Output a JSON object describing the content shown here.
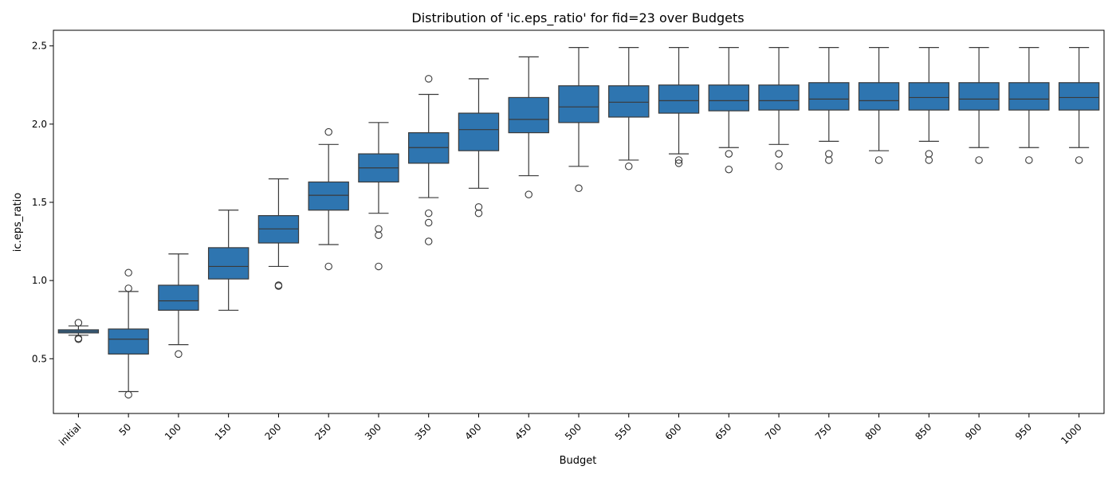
{
  "chart_data": {
    "type": "boxplot",
    "title": "Distribution of 'ic.eps_ratio' for fid=23 over Budgets",
    "xlabel": "Budget",
    "ylabel": "ic.eps_ratio",
    "ylim": [
      0.15,
      2.6
    ],
    "yticks": [
      "0.5",
      "1.0",
      "1.5",
      "2.0",
      "2.5"
    ],
    "grid": false,
    "box_color": "#2e75b0",
    "categories": [
      "initial",
      "50",
      "100",
      "150",
      "200",
      "250",
      "300",
      "350",
      "400",
      "450",
      "500",
      "550",
      "600",
      "650",
      "700",
      "750",
      "800",
      "850",
      "900",
      "950",
      "1000"
    ],
    "boxes": [
      {
        "whislo": 0.65,
        "q1": 0.665,
        "med": 0.675,
        "q3": 0.685,
        "whishi": 0.71,
        "fliers": [
          0.73,
          0.63,
          0.625
        ]
      },
      {
        "whislo": 0.29,
        "q1": 0.53,
        "med": 0.625,
        "q3": 0.69,
        "whishi": 0.93,
        "fliers": [
          1.05,
          0.95,
          0.27
        ]
      },
      {
        "whislo": 0.59,
        "q1": 0.81,
        "med": 0.87,
        "q3": 0.97,
        "whishi": 1.17,
        "fliers": [
          0.53
        ]
      },
      {
        "whislo": 0.81,
        "q1": 1.01,
        "med": 1.09,
        "q3": 1.21,
        "whishi": 1.45,
        "fliers": []
      },
      {
        "whislo": 1.09,
        "q1": 1.24,
        "med": 1.33,
        "q3": 1.415,
        "whishi": 1.65,
        "fliers": [
          0.97,
          0.965
        ]
      },
      {
        "whislo": 1.23,
        "q1": 1.45,
        "med": 1.545,
        "q3": 1.63,
        "whishi": 1.87,
        "fliers": [
          1.95,
          1.09
        ]
      },
      {
        "whislo": 1.43,
        "q1": 1.63,
        "med": 1.72,
        "q3": 1.81,
        "whishi": 2.01,
        "fliers": [
          1.33,
          1.29,
          1.09
        ]
      },
      {
        "whislo": 1.53,
        "q1": 1.75,
        "med": 1.85,
        "q3": 1.945,
        "whishi": 2.19,
        "fliers": [
          2.29,
          1.43,
          1.37,
          1.25
        ]
      },
      {
        "whislo": 1.59,
        "q1": 1.83,
        "med": 1.965,
        "q3": 2.07,
        "whishi": 2.29,
        "fliers": [
          1.47,
          1.43
        ]
      },
      {
        "whislo": 1.67,
        "q1": 1.945,
        "med": 2.03,
        "q3": 2.17,
        "whishi": 2.43,
        "fliers": [
          1.55
        ]
      },
      {
        "whislo": 1.73,
        "q1": 2.01,
        "med": 2.11,
        "q3": 2.245,
        "whishi": 2.49,
        "fliers": [
          1.59
        ]
      },
      {
        "whislo": 1.77,
        "q1": 2.045,
        "med": 2.14,
        "q3": 2.245,
        "whishi": 2.49,
        "fliers": [
          1.73
        ]
      },
      {
        "whislo": 1.81,
        "q1": 2.07,
        "med": 2.15,
        "q3": 2.25,
        "whishi": 2.49,
        "fliers": [
          1.77,
          1.75
        ]
      },
      {
        "whislo": 1.85,
        "q1": 2.085,
        "med": 2.15,
        "q3": 2.25,
        "whishi": 2.49,
        "fliers": [
          1.81,
          1.71
        ]
      },
      {
        "whislo": 1.87,
        "q1": 2.09,
        "med": 2.15,
        "q3": 2.25,
        "whishi": 2.49,
        "fliers": [
          1.81,
          1.73
        ]
      },
      {
        "whislo": 1.89,
        "q1": 2.09,
        "med": 2.16,
        "q3": 2.265,
        "whishi": 2.49,
        "fliers": [
          1.81,
          1.77
        ]
      },
      {
        "whislo": 1.83,
        "q1": 2.09,
        "med": 2.15,
        "q3": 2.265,
        "whishi": 2.49,
        "fliers": [
          1.77
        ]
      },
      {
        "whislo": 1.89,
        "q1": 2.09,
        "med": 2.17,
        "q3": 2.265,
        "whishi": 2.49,
        "fliers": [
          1.81,
          1.77
        ]
      },
      {
        "whislo": 1.85,
        "q1": 2.09,
        "med": 2.16,
        "q3": 2.265,
        "whishi": 2.49,
        "fliers": [
          1.77
        ]
      },
      {
        "whislo": 1.85,
        "q1": 2.09,
        "med": 2.16,
        "q3": 2.265,
        "whishi": 2.49,
        "fliers": [
          1.77
        ]
      },
      {
        "whislo": 1.85,
        "q1": 2.09,
        "med": 2.17,
        "q3": 2.265,
        "whishi": 2.49,
        "fliers": [
          1.77
        ]
      }
    ]
  }
}
